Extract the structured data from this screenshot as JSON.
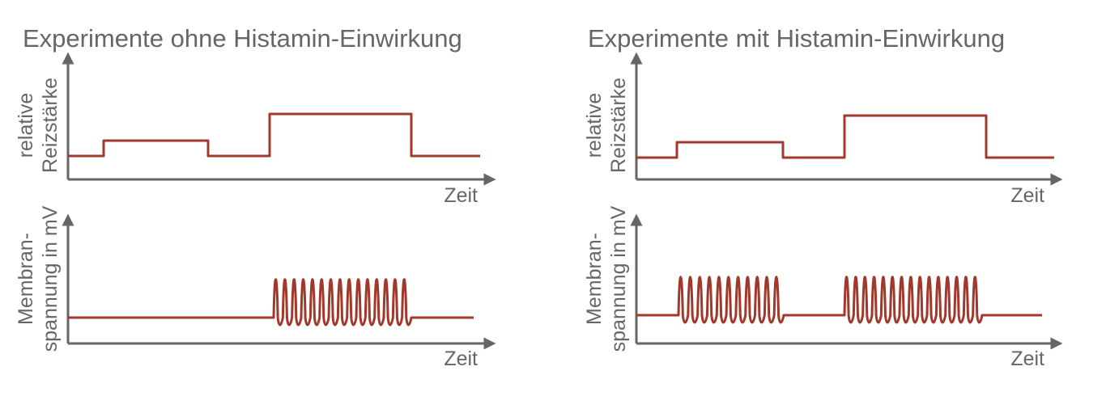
{
  "panels": [
    {
      "title": "Experimente ohne Histamin-Einwirkung",
      "stimulus": {
        "y_label": [
          "relative",
          "Reizstärke"
        ],
        "x_label": "Zeit"
      },
      "response": {
        "y_label": [
          "Membran-",
          "spannung in mV"
        ],
        "x_label": "Zeit"
      }
    },
    {
      "title": "Experimente mit Histamin-Einwirkung",
      "stimulus": {
        "y_label": [
          "relative",
          "Reizstärke"
        ],
        "x_label": "Zeit"
      },
      "response": {
        "y_label": [
          "Membran-",
          "spannung in mV"
        ],
        "x_label": "Zeit"
      }
    }
  ]
}
